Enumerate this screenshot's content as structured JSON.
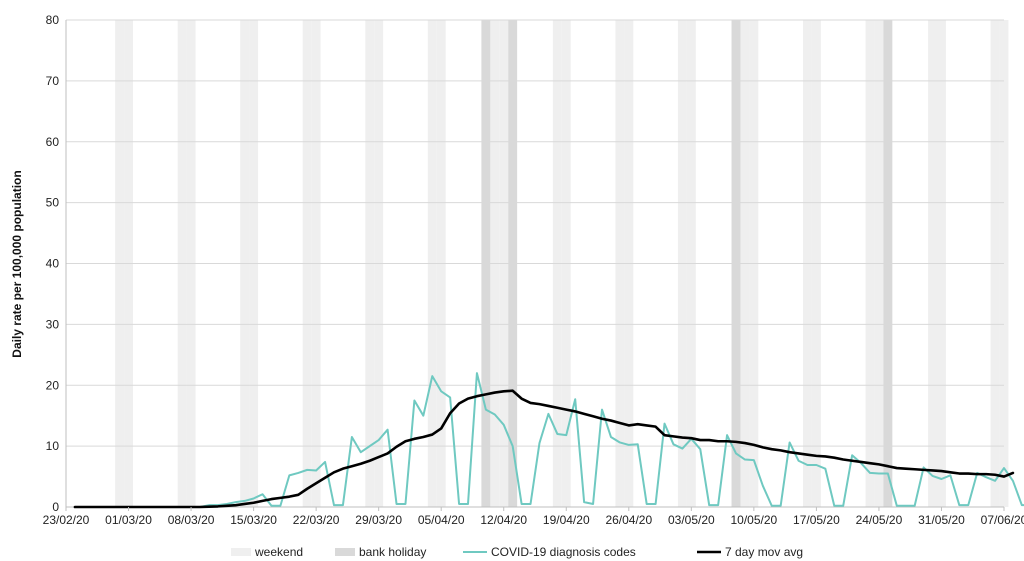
{
  "chart_data": {
    "type": "line",
    "ylabel": "Daily rate per 100,000 population",
    "xlabel": "",
    "ylim": [
      0,
      80
    ],
    "yticks": [
      0,
      10,
      20,
      30,
      40,
      50,
      60,
      70,
      80
    ],
    "x_start": "23/02/20",
    "x_end": "07/06/20",
    "x_ticks": [
      "23/02/20",
      "01/03/20",
      "08/03/20",
      "15/03/20",
      "22/03/20",
      "29/03/20",
      "05/04/20",
      "12/04/20",
      "19/04/20",
      "26/04/20",
      "03/05/20",
      "10/05/20",
      "17/05/20",
      "24/05/20",
      "31/05/20",
      "07/06/20"
    ],
    "grid": "horizontal",
    "legend_position": "bottom",
    "colors": {
      "weekend": "#efefef",
      "bank_holiday": "#d9d9d9",
      "diagnosis": "#6fc9c1",
      "moving_avg": "#000000",
      "grid": "#d9d9d9",
      "axis": "#bfbfbf"
    },
    "weekend_dates": [
      "29/02/20",
      "01/03/20",
      "07/03/20",
      "08/03/20",
      "14/03/20",
      "15/03/20",
      "21/03/20",
      "22/03/20",
      "28/03/20",
      "29/03/20",
      "04/04/20",
      "05/04/20",
      "11/04/20",
      "12/04/20",
      "18/04/20",
      "19/04/20",
      "25/04/20",
      "26/04/20",
      "02/05/20",
      "03/05/20",
      "09/05/20",
      "10/05/20",
      "16/05/20",
      "17/05/20",
      "23/05/20",
      "24/05/20",
      "30/05/20",
      "31/05/20",
      "06/06/20",
      "07/06/20"
    ],
    "bank_holiday_dates": [
      "10/04/20",
      "13/04/20",
      "08/05/20",
      "25/05/20"
    ],
    "series": [
      {
        "name": "COVID-19 diagnosis codes",
        "start": "24/02/20",
        "values": [
          0,
          0,
          0,
          0,
          0,
          0,
          0,
          0,
          0,
          0,
          0,
          0,
          0,
          0,
          0,
          0.3,
          0.3,
          0.5,
          0.8,
          1.0,
          1.4,
          2.1,
          0.2,
          0.2,
          5.2,
          5.6,
          6.1,
          6.0,
          7.4,
          0.3,
          0.3,
          11.5,
          9.0,
          10.0,
          11.0,
          12.7,
          0.5,
          0.5,
          17.5,
          15.0,
          21.5,
          19.0,
          18.0,
          0.5,
          0.5,
          22.0,
          16.0,
          15.2,
          13.5,
          10.0,
          0.5,
          0.5,
          10.5,
          15.3,
          12.0,
          11.8,
          17.7,
          0.8,
          0.5,
          16.0,
          11.5,
          10.6,
          10.2,
          10.3,
          0.5,
          0.5,
          13.7,
          10.3,
          9.6,
          11.2,
          9.5,
          0.3,
          0.3,
          11.8,
          8.8,
          7.8,
          7.7,
          3.5,
          0.2,
          0.2,
          10.6,
          7.6,
          6.9,
          6.9,
          6.3,
          0.2,
          0.2,
          8.5,
          7.2,
          5.6,
          5.5,
          5.5,
          0.2,
          0.2,
          0.2,
          6.5,
          5.1,
          4.6,
          5.2,
          0.3,
          0.3,
          5.6,
          4.9,
          4.3,
          6.4,
          4.3,
          0.3,
          0.3
        ]
      },
      {
        "name": "7 day mov avg",
        "start": "24/02/20",
        "values": [
          0,
          0,
          0,
          0,
          0,
          0,
          0,
          0,
          0,
          0,
          0,
          0,
          0,
          0,
          0,
          0.05,
          0.1,
          0.2,
          0.3,
          0.5,
          0.7,
          1.0,
          1.3,
          1.5,
          1.7,
          2.0,
          3.0,
          3.9,
          4.8,
          5.7,
          6.3,
          6.7,
          7.1,
          7.6,
          8.2,
          8.8,
          9.9,
          10.8,
          11.2,
          11.5,
          11.9,
          12.9,
          15.4,
          17.0,
          17.8,
          18.2,
          18.5,
          18.8,
          19.0,
          19.1,
          17.8,
          17.1,
          16.9,
          16.6,
          16.3,
          16.0,
          15.7,
          15.3,
          14.9,
          14.5,
          14.2,
          13.8,
          13.4,
          13.6,
          13.4,
          13.2,
          11.8,
          11.6,
          11.4,
          11.3,
          11.0,
          11.0,
          10.8,
          10.8,
          10.7,
          10.5,
          10.2,
          9.8,
          9.5,
          9.3,
          9.0,
          8.8,
          8.6,
          8.4,
          8.3,
          8.1,
          7.8,
          7.6,
          7.4,
          7.2,
          7.0,
          6.7,
          6.4,
          6.3,
          6.2,
          6.1,
          6.0,
          5.9,
          5.7,
          5.5,
          5.5,
          5.4,
          5.4,
          5.3,
          5.0,
          5.6
        ]
      }
    ],
    "legend": [
      {
        "label": "weekend",
        "kind": "band",
        "color": "#efefef"
      },
      {
        "label": "bank holiday",
        "kind": "band",
        "color": "#d9d9d9"
      },
      {
        "label": "COVID-19 diagnosis codes",
        "kind": "line",
        "color": "#6fc9c1"
      },
      {
        "label": "7 day mov avg",
        "kind": "line",
        "color": "#000000"
      }
    ]
  }
}
